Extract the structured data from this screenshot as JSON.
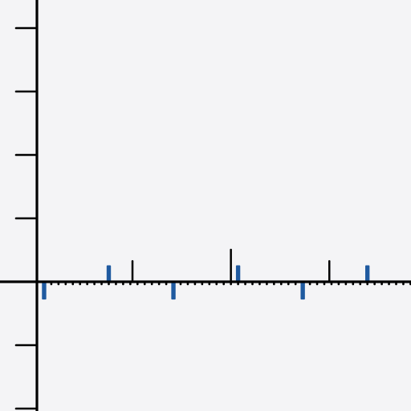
{
  "chart_data": {
    "type": "bar",
    "title": "",
    "xlabel": "",
    "ylabel": "",
    "grid": false,
    "legend": "none",
    "xlim": [
      0,
      58
    ],
    "ylim": [
      -2,
      4.5
    ],
    "yticks": [
      -2,
      -1,
      0,
      1,
      2,
      3,
      4
    ],
    "xticks": [
      1,
      2,
      3,
      4,
      5,
      6,
      7,
      8,
      9,
      10,
      11,
      12,
      13,
      14,
      15,
      16,
      17,
      18,
      19,
      20,
      21,
      22,
      23,
      24,
      25,
      26,
      27,
      28,
      29,
      30,
      31,
      32,
      33,
      34,
      35,
      36,
      37,
      38,
      39,
      40,
      41,
      42,
      43,
      44,
      45,
      46,
      47,
      48,
      49,
      50,
      51,
      52,
      53,
      54,
      55,
      56,
      57,
      58
    ],
    "series": [
      {
        "color": "#1f5aa0",
        "bar_width": 0.6,
        "points": [
          {
            "x": 1.0,
            "y": -0.28
          },
          {
            "x": 10.0,
            "y": 0.26
          },
          {
            "x": 19.0,
            "y": -0.28
          },
          {
            "x": 28.0,
            "y": 0.26
          },
          {
            "x": 37.0,
            "y": -0.28
          },
          {
            "x": 46.0,
            "y": 0.26
          }
        ]
      },
      {
        "color": "#000000",
        "bar_width": 0.25,
        "points": [
          {
            "x": 13.3,
            "y": 0.34
          },
          {
            "x": 27.0,
            "y": 0.52
          },
          {
            "x": 40.7,
            "y": 0.34
          }
        ]
      }
    ]
  }
}
